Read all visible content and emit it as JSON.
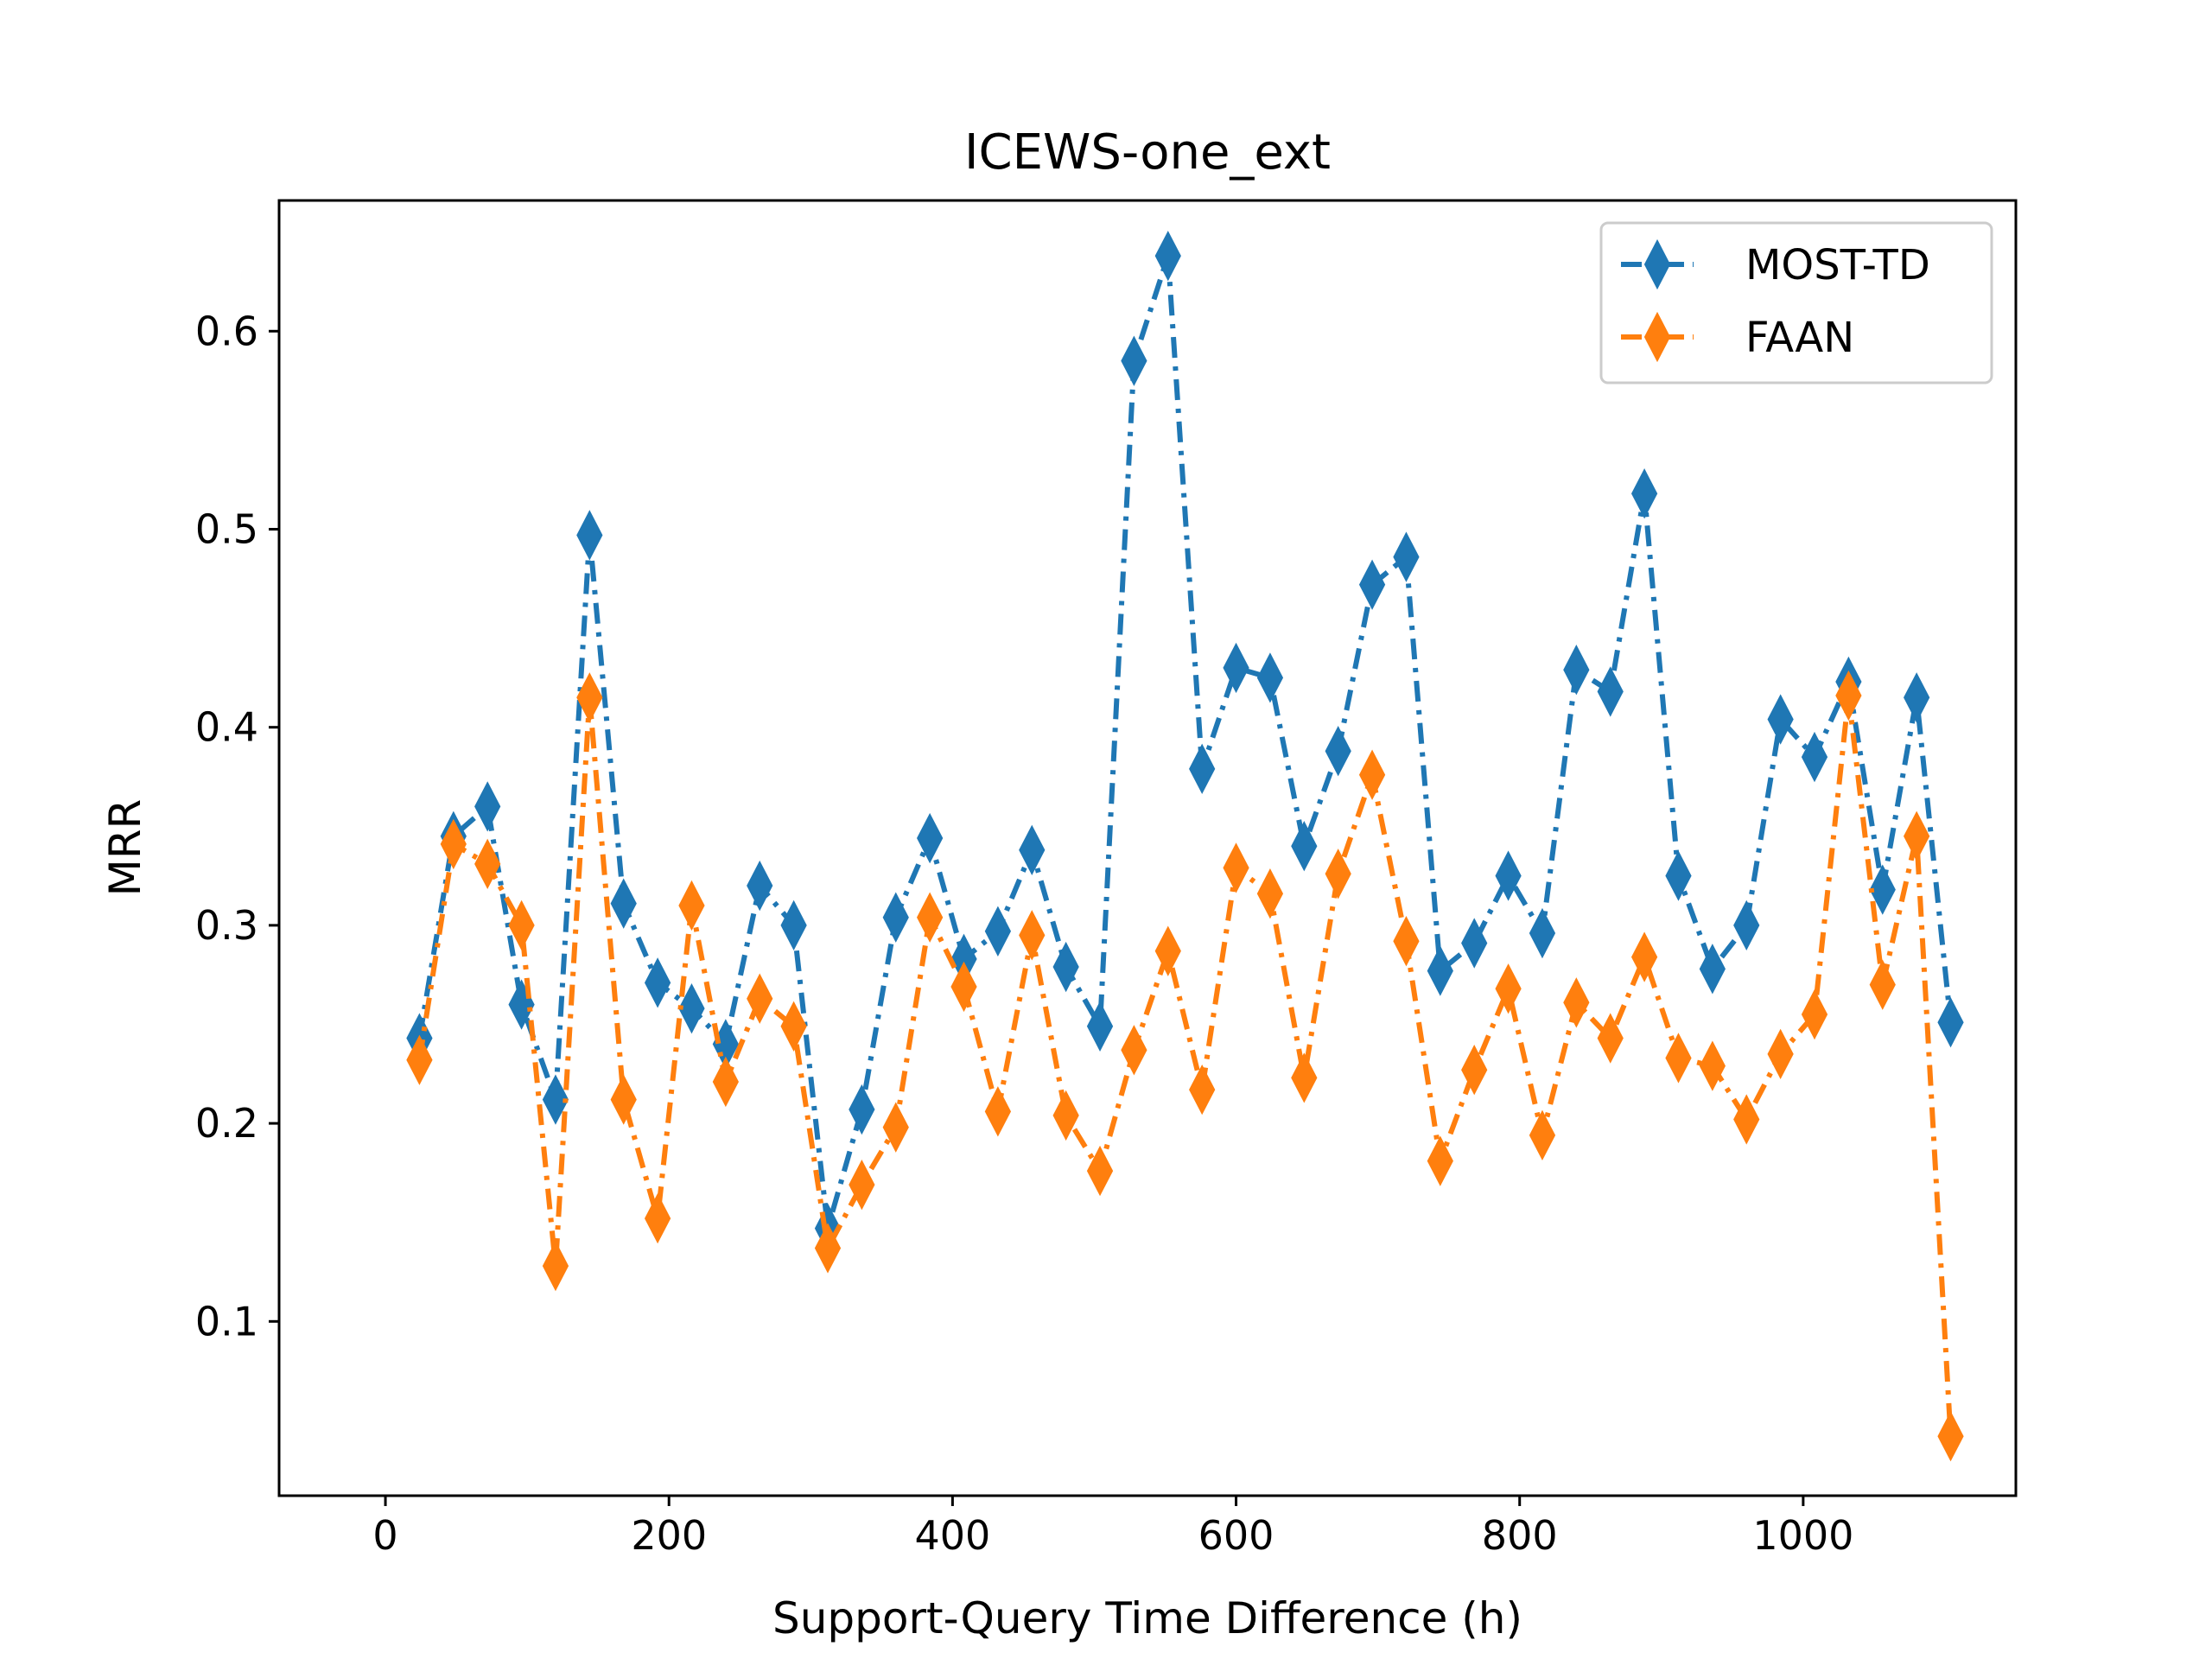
{
  "chart_data": {
    "type": "line",
    "title": "ICEWS-one_ext",
    "xlabel": "Support-Query Time Difference (h)",
    "ylabel": "MRR",
    "xlim": [
      -75,
      1150
    ],
    "ylim": [
      0.012,
      0.666
    ],
    "xticks": [
      0,
      200,
      400,
      600,
      800,
      1000
    ],
    "xtick_labels": [
      "0",
      "200",
      "400",
      "600",
      "800",
      "1000"
    ],
    "yticks": [
      0.1,
      0.2,
      0.3,
      0.4,
      0.5,
      0.6
    ],
    "ytick_labels": [
      "0.1",
      "0.2",
      "0.3",
      "0.4",
      "0.5",
      "0.6"
    ],
    "grid": false,
    "legend_position": "top-right",
    "x": [
      24,
      48,
      72,
      96,
      120,
      144,
      168,
      192,
      216,
      240,
      264,
      288,
      312,
      336,
      360,
      384,
      408,
      432,
      456,
      480,
      504,
      528,
      552,
      576,
      600,
      624,
      648,
      672,
      696,
      720,
      744,
      768,
      792,
      816,
      840,
      864,
      888,
      912,
      936,
      960,
      984,
      1008,
      1032,
      1056,
      1080,
      1104
    ],
    "series": [
      {
        "name": "MOST-TD",
        "color": "#1f77b4",
        "marker": "thin_diamond",
        "linestyle": "dashdot",
        "values": [
          0.243,
          0.345,
          0.36,
          0.26,
          0.212,
          0.497,
          0.311,
          0.271,
          0.258,
          0.24,
          0.32,
          0.3,
          0.147,
          0.207,
          0.304,
          0.344,
          0.283,
          0.297,
          0.338,
          0.279,
          0.249,
          0.585,
          0.638,
          0.379,
          0.43,
          0.425,
          0.34,
          0.388,
          0.472,
          0.486,
          0.277,
          0.291,
          0.325,
          0.296,
          0.429,
          0.418,
          0.518,
          0.325,
          0.278,
          0.3,
          0.404,
          0.385,
          0.423,
          0.318,
          0.415,
          0.251
        ]
      },
      {
        "name": "FAAN",
        "color": "#ff7f0e",
        "marker": "thin_diamond",
        "linestyle": "dashdot",
        "values": [
          0.232,
          0.341,
          0.331,
          0.3,
          0.128,
          0.415,
          0.212,
          0.152,
          0.31,
          0.221,
          0.263,
          0.249,
          0.137,
          0.169,
          0.198,
          0.304,
          0.269,
          0.206,
          0.295,
          0.204,
          0.176,
          0.237,
          0.287,
          0.217,
          0.329,
          0.316,
          0.223,
          0.326,
          0.376,
          0.292,
          0.181,
          0.227,
          0.268,
          0.194,
          0.261,
          0.243,
          0.284,
          0.233,
          0.229,
          0.202,
          0.235,
          0.255,
          0.416,
          0.27,
          0.345,
          0.042
        ]
      }
    ]
  }
}
